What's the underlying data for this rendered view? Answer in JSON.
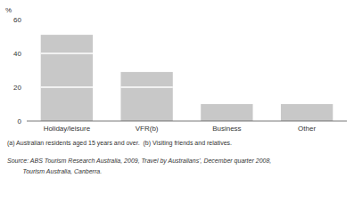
{
  "chart_data": {
    "type": "bar",
    "stacked": true,
    "categories": [
      "Holiday/leisure",
      "VFR(b)",
      "Business",
      "Other"
    ],
    "series": [
      {
        "color": "#c8c8c8",
        "values": [
          20,
          20,
          10,
          10
        ]
      },
      {
        "color": "#c8c8c8",
        "values": [
          20,
          9,
          0,
          0
        ]
      },
      {
        "color": "#c8c8c8",
        "values": [
          11,
          0,
          0,
          0
        ]
      }
    ],
    "ylabel": "%",
    "ylim": [
      0,
      60
    ],
    "yticks": [
      0,
      20,
      40,
      60
    ],
    "grid": false,
    "annotations": [
      "(a) Australian residents aged 15 years and over.  (b) Visiting friends and relatives.",
      "Source: ABS Tourism Research Australia, 2009, Travel by Australians', December quarter 2008,",
      "         Tourism Australia, Canberra."
    ]
  }
}
